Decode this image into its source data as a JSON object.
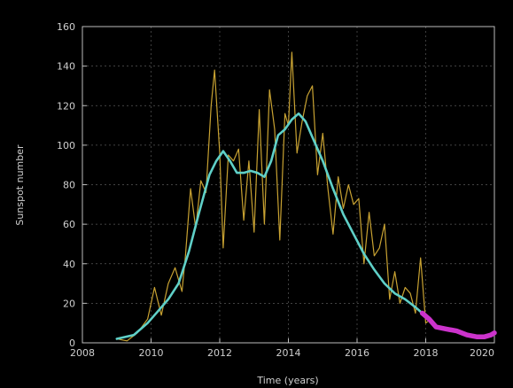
{
  "chart_data": {
    "type": "line",
    "xlabel": "Time (years)",
    "ylabel": "Sunspot number",
    "xlim": [
      2008,
      2020
    ],
    "ylim": [
      0,
      160
    ],
    "x_ticks": [
      "2008",
      "2010",
      "2012",
      "2014",
      "2016",
      "2018",
      "2020"
    ],
    "y_ticks": [
      "0",
      "20",
      "40",
      "60",
      "80",
      "100",
      "120",
      "140",
      "160"
    ],
    "grid": true,
    "colors": {
      "background": "#000000",
      "monthly": "#c8a232",
      "smoothed": "#5fd0c8",
      "predicted": "#cc33cc"
    },
    "series": [
      {
        "key": "monthly",
        "x": [
          2009.0,
          2009.3,
          2009.6,
          2009.9,
          2010.1,
          2010.3,
          2010.5,
          2010.7,
          2010.9,
          2011.0,
          2011.15,
          2011.3,
          2011.45,
          2011.6,
          2011.75,
          2011.85,
          2012.0,
          2012.1,
          2012.25,
          2012.4,
          2012.55,
          2012.7,
          2012.85,
          2013.0,
          2013.15,
          2013.3,
          2013.45,
          2013.6,
          2013.75,
          2013.9,
          2014.0,
          2014.1,
          2014.25,
          2014.4,
          2014.55,
          2014.7,
          2014.85,
          2015.0,
          2015.15,
          2015.3,
          2015.45,
          2015.6,
          2015.75,
          2015.9,
          2016.05,
          2016.2,
          2016.35,
          2016.5,
          2016.65,
          2016.8,
          2016.95,
          2017.1,
          2017.25,
          2017.4,
          2017.55,
          2017.7,
          2017.85,
          2018.0,
          2018.15,
          2018.3
        ],
        "y": [
          2,
          1,
          5,
          12,
          28,
          14,
          30,
          38,
          26,
          44,
          78,
          58,
          82,
          76,
          120,
          138,
          96,
          48,
          95,
          92,
          98,
          62,
          92,
          56,
          118,
          60,
          128,
          108,
          52,
          116,
          110,
          147,
          96,
          112,
          125,
          130,
          85,
          106,
          78,
          55,
          84,
          68,
          80,
          70,
          73,
          40,
          66,
          44,
          48,
          60,
          22,
          36,
          20,
          28,
          25,
          15,
          43,
          10,
          12,
          8
        ]
      },
      {
        "key": "smoothed",
        "x": [
          2009.0,
          2009.5,
          2009.9,
          2010.2,
          2010.5,
          2010.8,
          2011.1,
          2011.4,
          2011.7,
          2011.9,
          2012.1,
          2012.3,
          2012.5,
          2012.7,
          2012.9,
          2013.1,
          2013.3,
          2013.5,
          2013.7,
          2013.9,
          2014.1,
          2014.3,
          2014.5,
          2014.7,
          2015.0,
          2015.3,
          2015.6,
          2015.9,
          2016.2,
          2016.5,
          2016.8,
          2017.1,
          2017.4,
          2017.7,
          2017.9
        ],
        "y": [
          2,
          4,
          10,
          16,
          22,
          30,
          46,
          66,
          85,
          92,
          97,
          92,
          86,
          86,
          87,
          86,
          84,
          92,
          105,
          108,
          113,
          116,
          112,
          104,
          92,
          78,
          65,
          55,
          45,
          37,
          30,
          25,
          22,
          18,
          15
        ]
      },
      {
        "key": "predicted",
        "x": [
          2017.9,
          2018.1,
          2018.3,
          2018.6,
          2018.9,
          2019.2,
          2019.5,
          2019.7,
          2019.9,
          2020.0
        ],
        "y": [
          15,
          12,
          8,
          7,
          6,
          4,
          3,
          3,
          4,
          5
        ]
      }
    ]
  }
}
